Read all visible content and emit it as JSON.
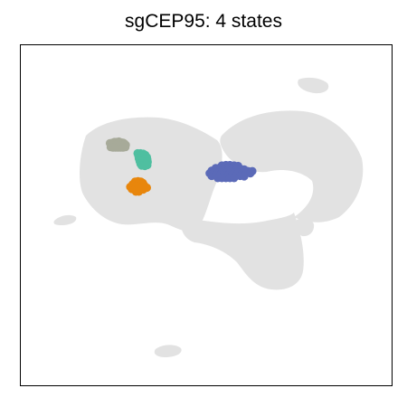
{
  "chart_data": {
    "type": "scatter",
    "title": "sgCEP95: 4 states",
    "xlabel": "",
    "ylabel": "",
    "axes_ticks": false,
    "grid": false,
    "legend": "none",
    "background_color": "#e2e2e2",
    "series": [
      {
        "color": "#a7aa99",
        "points": [
          [
            0.292,
            0.325
          ],
          [
            0.286,
            0.326
          ],
          [
            0.281,
            0.326
          ],
          [
            0.276,
            0.328
          ],
          [
            0.27,
            0.329
          ],
          [
            0.298,
            0.327
          ],
          [
            0.303,
            0.328
          ],
          [
            0.306,
            0.33
          ],
          [
            0.309,
            0.333
          ],
          [
            0.275,
            0.333
          ],
          [
            0.281,
            0.333
          ],
          [
            0.287,
            0.333
          ],
          [
            0.293,
            0.333
          ],
          [
            0.299,
            0.333
          ],
          [
            0.305,
            0.333
          ],
          [
            0.272,
            0.338
          ],
          [
            0.278,
            0.339
          ],
          [
            0.284,
            0.339
          ],
          [
            0.29,
            0.339
          ],
          [
            0.296,
            0.339
          ],
          [
            0.302,
            0.339
          ],
          [
            0.308,
            0.338
          ]
        ]
      },
      {
        "color": "#4fbfa0",
        "points": [
          [
            0.338,
            0.352
          ],
          [
            0.345,
            0.352
          ],
          [
            0.352,
            0.353
          ],
          [
            0.357,
            0.356
          ],
          [
            0.34,
            0.358
          ],
          [
            0.347,
            0.358
          ],
          [
            0.354,
            0.359
          ],
          [
            0.361,
            0.361
          ],
          [
            0.341,
            0.364
          ],
          [
            0.348,
            0.364
          ],
          [
            0.355,
            0.365
          ],
          [
            0.362,
            0.366
          ],
          [
            0.343,
            0.37
          ],
          [
            0.35,
            0.37
          ],
          [
            0.357,
            0.371
          ],
          [
            0.363,
            0.372
          ],
          [
            0.345,
            0.376
          ],
          [
            0.352,
            0.376
          ],
          [
            0.359,
            0.377
          ],
          [
            0.362,
            0.379
          ],
          [
            0.348,
            0.38
          ],
          [
            0.356,
            0.381
          ]
        ]
      },
      {
        "color": "#e8860c",
        "points": [
          [
            0.332,
            0.417
          ],
          [
            0.339,
            0.416
          ],
          [
            0.346,
            0.417
          ],
          [
            0.351,
            0.42
          ],
          [
            0.326,
            0.423
          ],
          [
            0.333,
            0.422
          ],
          [
            0.34,
            0.422
          ],
          [
            0.347,
            0.423
          ],
          [
            0.354,
            0.425
          ],
          [
            0.32,
            0.429
          ],
          [
            0.327,
            0.428
          ],
          [
            0.334,
            0.428
          ],
          [
            0.341,
            0.428
          ],
          [
            0.348,
            0.429
          ],
          [
            0.355,
            0.43
          ],
          [
            0.361,
            0.431
          ],
          [
            0.324,
            0.434
          ],
          [
            0.331,
            0.434
          ],
          [
            0.338,
            0.434
          ],
          [
            0.345,
            0.435
          ],
          [
            0.352,
            0.435
          ],
          [
            0.334,
            0.44
          ],
          [
            0.341,
            0.44
          ]
        ]
      },
      {
        "color": "#5b6ab8",
        "points": [
          [
            0.545,
            0.38
          ],
          [
            0.555,
            0.379
          ],
          [
            0.565,
            0.379
          ],
          [
            0.575,
            0.38
          ],
          [
            0.585,
            0.381
          ],
          [
            0.53,
            0.386
          ],
          [
            0.54,
            0.385
          ],
          [
            0.55,
            0.385
          ],
          [
            0.56,
            0.385
          ],
          [
            0.57,
            0.385
          ],
          [
            0.58,
            0.386
          ],
          [
            0.59,
            0.387
          ],
          [
            0.6,
            0.389
          ],
          [
            0.52,
            0.392
          ],
          [
            0.53,
            0.391
          ],
          [
            0.54,
            0.391
          ],
          [
            0.55,
            0.391
          ],
          [
            0.56,
            0.391
          ],
          [
            0.57,
            0.391
          ],
          [
            0.58,
            0.391
          ],
          [
            0.59,
            0.392
          ],
          [
            0.6,
            0.393
          ],
          [
            0.61,
            0.393
          ],
          [
            0.62,
            0.393
          ],
          [
            0.515,
            0.398
          ],
          [
            0.525,
            0.397
          ],
          [
            0.535,
            0.397
          ],
          [
            0.545,
            0.397
          ],
          [
            0.555,
            0.397
          ],
          [
            0.565,
            0.397
          ],
          [
            0.575,
            0.397
          ],
          [
            0.585,
            0.397
          ],
          [
            0.595,
            0.398
          ],
          [
            0.605,
            0.398
          ],
          [
            0.615,
            0.398
          ],
          [
            0.52,
            0.404
          ],
          [
            0.53,
            0.403
          ],
          [
            0.54,
            0.403
          ],
          [
            0.55,
            0.403
          ],
          [
            0.56,
            0.403
          ],
          [
            0.57,
            0.403
          ],
          [
            0.58,
            0.404
          ],
          [
            0.59,
            0.404
          ],
          [
            0.6,
            0.405
          ],
          [
            0.535,
            0.409
          ],
          [
            0.545,
            0.409
          ],
          [
            0.555,
            0.409
          ],
          [
            0.565,
            0.409
          ],
          [
            0.575,
            0.409
          ]
        ]
      }
    ]
  }
}
